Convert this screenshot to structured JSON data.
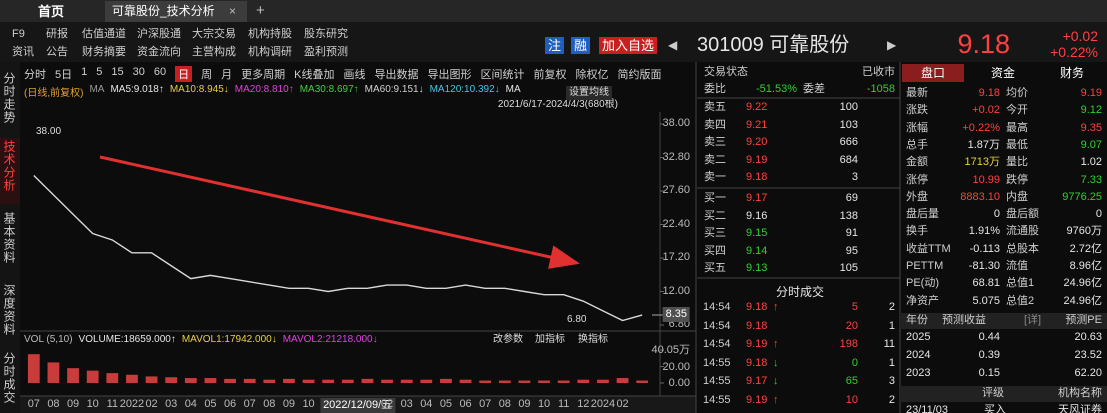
{
  "tabs": {
    "home": "首页",
    "active": "可靠股份_技术分析",
    "close": "×",
    "add": "+"
  },
  "menu": [
    [
      "F9",
      "研报",
      "估值通道",
      "沪深股通",
      "大宗交易",
      "机构持股",
      "股东研究"
    ],
    [
      "资讯",
      "公告",
      "财务摘要",
      "资金流向",
      "主营构成",
      "机构调研",
      "盈利预测"
    ]
  ],
  "header": {
    "zhu": "注",
    "rong": "融",
    "add_watch": "加入自选",
    "prev": "◀",
    "code_name": "301009 可靠股份",
    "next": "▶",
    "price": "9.18",
    "change": "+0.02",
    "change_pct": "+0.22%"
  },
  "side_tabs": [
    "分时走势",
    "技术分析",
    "基本资料",
    "深度资料",
    "分时成交"
  ],
  "toolbar": [
    "分时",
    "5日",
    "1",
    "5",
    "15",
    "30",
    "60",
    "日",
    "周",
    "月",
    "更多周期",
    "K线叠加",
    "画线",
    "导出数据",
    "导出图形",
    "区间统计",
    "前复权",
    "除权亿",
    "简约版面"
  ],
  "ma_line": [
    {
      "text": "(日线,前复权)",
      "color": "#e0a030"
    },
    {
      "text": "MA",
      "color": "#9a9a9a"
    },
    {
      "text": "MA5:9.018↑",
      "color": "#e6e6e6"
    },
    {
      "text": "MA10:8.945↓",
      "color": "#e8d040"
    },
    {
      "text": "MA20:8.810↑",
      "color": "#e040e0"
    },
    {
      "text": "MA30:8.697↑",
      "color": "#40d040"
    },
    {
      "text": "MA60:9.151↓",
      "color": "#d0d0d0"
    },
    {
      "text": "MA120:10.392↓",
      "color": "#40c8e8"
    },
    {
      "text": "MA",
      "color": "#e6e6e6"
    }
  ],
  "range": "2021/6/17-2024/4/3(680根)",
  "set_ma": "设置均线",
  "vol_legend": [
    {
      "text": "VOL (5,10)",
      "color": "#bbbbbb"
    },
    {
      "text": "VOLUME:18659.000↑",
      "color": "#e6e6e6"
    },
    {
      "text": "MAVOL1:17942.000↓",
      "color": "#e8d040"
    },
    {
      "text": "MAVOL2:21218.000↓",
      "color": "#e040e0"
    }
  ],
  "vol_buttons": [
    "改参数",
    "加指标",
    "换指标"
  ],
  "order_book": {
    "status": "交易状态",
    "closed": "已收市",
    "wb_label": "委比",
    "wb": "-51.53%",
    "wc_label": "委差",
    "wc": "-1058",
    "rows": [
      {
        "label": "卖五",
        "price": "9.22",
        "vol": "100",
        "color": "#ff4040"
      },
      {
        "label": "卖四",
        "price": "9.21",
        "vol": "103",
        "color": "#ff4040"
      },
      {
        "label": "卖三",
        "price": "9.20",
        "vol": "666",
        "color": "#ff4040"
      },
      {
        "label": "卖二",
        "price": "9.19",
        "vol": "684",
        "color": "#ff4040"
      },
      {
        "label": "卖一",
        "price": "9.18",
        "vol": "3",
        "color": "#ff4040"
      },
      {
        "label": "买一",
        "price": "9.17",
        "vol": "69",
        "color": "#ff4040"
      },
      {
        "label": "买二",
        "price": "9.16",
        "vol": "138",
        "color": "#e6e6e6"
      },
      {
        "label": "买三",
        "price": "9.15",
        "vol": "91",
        "color": "#30d030"
      },
      {
        "label": "买四",
        "price": "9.14",
        "vol": "95",
        "color": "#30d030"
      },
      {
        "label": "买五",
        "price": "9.13",
        "vol": "105",
        "color": "#30d030"
      }
    ]
  },
  "trades": {
    "title": "分时成交",
    "rows": [
      {
        "time": "14:54",
        "price": "9.18",
        "dir": "↑",
        "vol": "5",
        "count": "2",
        "color": "#ff4040"
      },
      {
        "time": "14:54",
        "price": "9.18",
        "dir": "",
        "vol": "20",
        "count": "1",
        "color": "#ff4040"
      },
      {
        "time": "14:54",
        "price": "9.19",
        "dir": "↑",
        "vol": "198",
        "count": "11",
        "color": "#ff4040"
      },
      {
        "time": "14:55",
        "price": "9.18",
        "dir": "↓",
        "vol": "0",
        "count": "1",
        "color": "#30d030"
      },
      {
        "time": "14:55",
        "price": "9.17",
        "dir": "↓",
        "vol": "65",
        "count": "3",
        "color": "#30d030"
      },
      {
        "time": "14:55",
        "price": "9.19",
        "dir": "↑",
        "vol": "10",
        "count": "2",
        "color": "#ff4040"
      }
    ]
  },
  "panel": {
    "tabs": [
      "盘口",
      "资金",
      "财务"
    ],
    "rows": [
      {
        "label": "最新",
        "value": "9.18",
        "color": "#ff4040",
        "label2": "均价",
        "value2": "9.19",
        "color2": "#ff4040"
      },
      {
        "label": "涨跌",
        "value": "+0.02",
        "color": "#ff4040",
        "label2": "今开",
        "value2": "9.12",
        "color2": "#30d030"
      },
      {
        "label": "涨幅",
        "value": "+0.22%",
        "color": "#ff4040",
        "label2": "最高",
        "value2": "9.35",
        "color2": "#ff4040"
      },
      {
        "label": "总手",
        "value": "1.87万",
        "color": "#e6e6e6",
        "label2": "最低",
        "value2": "9.07",
        "color2": "#30d030"
      },
      {
        "label": "金额",
        "value": "1713万",
        "color": "#e8d040",
        "label2": "量比",
        "value2": "1.02",
        "color2": "#e6e6e6"
      },
      {
        "label": "涨停",
        "value": "10.99",
        "color": "#ff4040",
        "label2": "跌停",
        "value2": "7.33",
        "color2": "#30d030"
      },
      {
        "label": "外盘",
        "value": "8883.10",
        "color": "#ff4040",
        "label2": "内盘",
        "value2": "9776.25",
        "color2": "#30d030"
      },
      {
        "label": "盘后量",
        "value": "0",
        "color": "#e6e6e6",
        "label2": "盘后额",
        "value2": "0",
        "color2": "#e6e6e6"
      },
      {
        "label": "换手",
        "value": "1.91%",
        "color": "#e6e6e6",
        "label2": "流通股",
        "value2": "9760万",
        "color2": "#e6e6e6"
      },
      {
        "label": "收益TTM",
        "value": "-0.113",
        "color": "#e6e6e6",
        "label2": "总股本",
        "value2": "2.72亿",
        "color2": "#e6e6e6"
      },
      {
        "label": "PETTM",
        "value": "-81.30",
        "color": "#e6e6e6",
        "label2": "流值",
        "value2": "8.96亿",
        "color2": "#e6e6e6"
      },
      {
        "label": "PE(动)",
        "value": "68.81",
        "color": "#e6e6e6",
        "label2": "总值1",
        "value2": "24.96亿",
        "color2": "#e6e6e6"
      },
      {
        "label": "净资产",
        "value": "5.075",
        "color": "#e6e6e6",
        "label2": "总值2",
        "value2": "24.96亿",
        "color2": "#e6e6e6"
      }
    ],
    "forecast_header": [
      "年份",
      "预测收益",
      "[详]",
      "预测PE"
    ],
    "forecast": [
      [
        "2025",
        "0.44",
        "20.63"
      ],
      [
        "2024",
        "0.39",
        "23.52"
      ],
      [
        "2023",
        "0.15",
        "62.20"
      ]
    ],
    "rating_header": [
      "评级",
      "机构名称"
    ],
    "rating": [
      "23/11/03",
      "买入",
      "天风证券"
    ]
  },
  "chart_data": [
    {
      "type": "line",
      "color": "#d8d8d8",
      "categories": [
        "07",
        "08",
        "09",
        "10",
        "11",
        "2022",
        "02",
        "03",
        "04",
        "05",
        "06",
        "07",
        "08",
        "09",
        "10",
        "11",
        "2022/12/09/五",
        null,
        "02",
        "03",
        "04",
        "05",
        "06",
        "07",
        "08",
        "09",
        "10",
        "11",
        "12",
        "2024",
        "02",
        null
      ],
      "values": [
        30,
        27,
        24,
        21,
        20,
        18,
        18,
        16,
        14,
        14.5,
        14,
        13.5,
        13,
        12.5,
        12.5,
        12,
        12.5,
        12.5,
        13,
        13,
        12.5,
        12.5,
        13,
        12.5,
        12.5,
        12,
        11.5,
        11.5,
        10.5,
        9,
        7.5,
        8.35
      ],
      "ylim": [
        6.8,
        38
      ],
      "yticks": [
        {
          "value": 38,
          "label": "38.00"
        },
        {
          "value": 32.8,
          "label": "32.80"
        },
        {
          "value": 27.6,
          "label": "27.60"
        },
        {
          "value": 22.4,
          "label": "22.40"
        },
        {
          "value": 17.2,
          "label": "17.20"
        },
        {
          "value": 12,
          "label": "12.00"
        },
        {
          "value": 6.8,
          "label": "6.80"
        }
      ],
      "last": {
        "value": 8.35,
        "label": "8.35"
      },
      "high_label": "38.00",
      "low_label": "6.80",
      "grid": false
    },
    {
      "type": "bar",
      "color": "#c83c3c",
      "values": [
        35,
        25,
        18,
        15,
        12,
        10,
        8,
        7,
        6,
        6,
        5,
        5,
        4,
        5,
        4,
        4,
        4,
        5,
        4,
        4,
        4,
        5,
        4,
        3,
        3,
        3,
        3,
        3,
        4,
        4,
        6,
        3
      ],
      "ylim": [
        0,
        40.05
      ],
      "yticks": [
        {
          "value": 40.05,
          "label": "40.05万"
        },
        {
          "value": 20,
          "label": "20.00"
        },
        {
          "value": 0,
          "label": "0.00"
        }
      ]
    }
  ]
}
